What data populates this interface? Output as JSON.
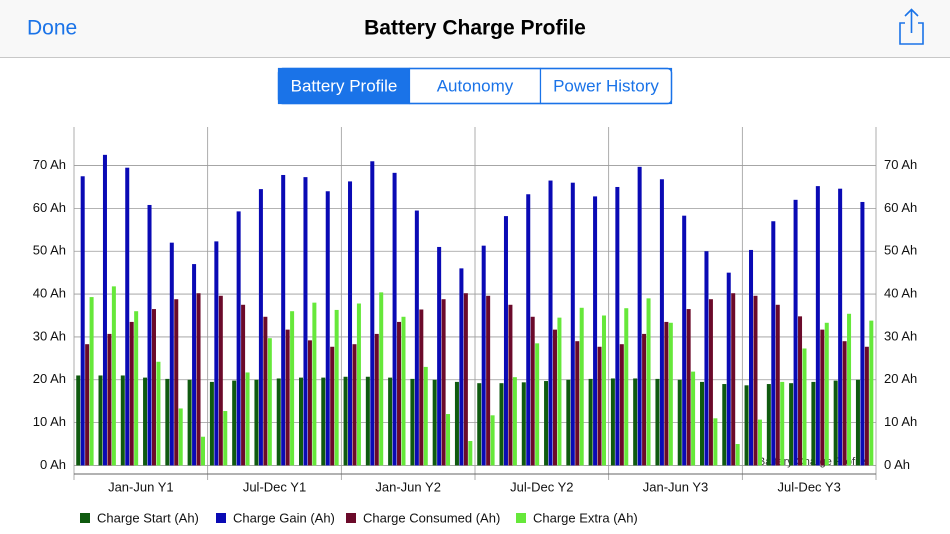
{
  "nav": {
    "left_button": "Done",
    "title": "Battery Charge Profile"
  },
  "segments": {
    "items": [
      "Battery Profile",
      "Autonomy",
      "Power History"
    ],
    "selected": 0
  },
  "chart_data": {
    "type": "bar",
    "watermark": "Battery Charge Profile",
    "categories": [
      "Jan-Jun Y1",
      "Jul-Dec Y1",
      "Jan-Jun Y2",
      "Jul-Dec Y2",
      "Jan-Jun Y3",
      "Jul-Dec Y3"
    ],
    "series": [
      {
        "name": "Charge Start (Ah)",
        "color": "#0f5a0f",
        "values": [
          [
            21,
            21,
            21,
            20.5,
            20.2,
            20
          ],
          [
            19.5,
            19.8,
            20,
            20.3,
            20.5,
            20.5
          ],
          [
            20.7,
            20.7,
            20.5,
            20.2,
            20,
            19.5
          ],
          [
            19.2,
            19.2,
            19.4,
            19.7,
            20,
            20.2
          ],
          [
            20.3,
            20.3,
            20.2,
            20,
            19.5,
            19
          ],
          [
            18.7,
            19,
            19.2,
            19.5,
            19.8,
            20
          ]
        ]
      },
      {
        "name": "Charge Gain (Ah)",
        "color": "#0a0ab4",
        "values": [
          [
            67.5,
            72.5,
            69.5,
            60.8,
            52,
            47
          ],
          [
            52.3,
            59.3,
            64.5,
            67.8,
            67.3,
            64
          ],
          [
            66.3,
            71,
            68.3,
            59.5,
            51,
            46
          ],
          [
            51.3,
            58.2,
            63.3,
            66.5,
            66,
            62.8
          ],
          [
            65,
            69.7,
            66.8,
            58.3,
            50,
            45
          ],
          [
            50.3,
            57,
            62,
            65.2,
            64.6,
            61.5
          ]
        ]
      },
      {
        "name": "Charge Consumed (Ah)",
        "color": "#6b0a2a",
        "values": [
          [
            28.3,
            30.7,
            33.5,
            36.5,
            38.8,
            40.2
          ],
          [
            39.6,
            37.5,
            34.7,
            31.7,
            29.2,
            27.7
          ],
          [
            28.3,
            30.7,
            33.5,
            36.4,
            38.8,
            40.2
          ],
          [
            39.6,
            37.5,
            34.7,
            31.7,
            29,
            27.7
          ],
          [
            28.3,
            30.7,
            33.5,
            36.5,
            38.8,
            40.2
          ],
          [
            39.6,
            37.5,
            34.8,
            31.7,
            29,
            27.7
          ]
        ]
      },
      {
        "name": "Charge Extra (Ah)",
        "color": "#66e83a",
        "values": [
          [
            39.3,
            41.8,
            36,
            24.2,
            13.3,
            6.7
          ],
          [
            12.7,
            21.7,
            29.7,
            36,
            38,
            36.3
          ],
          [
            37.8,
            40.4,
            34.7,
            23,
            12,
            5.7
          ],
          [
            11.7,
            20.6,
            28.5,
            34.5,
            36.8,
            35
          ],
          [
            36.7,
            39,
            33.3,
            21.9,
            11,
            5
          ],
          [
            10.7,
            19.5,
            27.3,
            33.3,
            35.4,
            33.8
          ]
        ]
      }
    ],
    "ylim": [
      -2,
      79
    ],
    "yticks": [
      {
        "value": 0,
        "label": "0 Ah"
      },
      {
        "value": 10,
        "label": "10 Ah"
      },
      {
        "value": 20,
        "label": "20 Ah"
      },
      {
        "value": 30,
        "label": "30 Ah"
      },
      {
        "value": 40,
        "label": "40 Ah"
      },
      {
        "value": 50,
        "label": "50 Ah"
      },
      {
        "value": 60,
        "label": "60 Ah"
      },
      {
        "value": 70,
        "label": "70 Ah"
      }
    ],
    "grid": true
  }
}
